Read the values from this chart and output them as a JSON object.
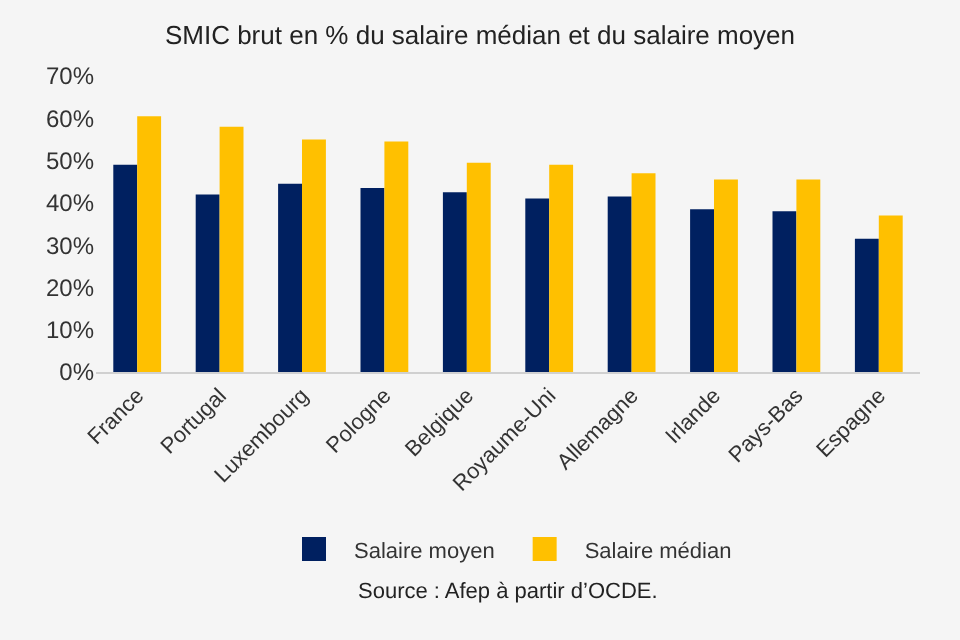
{
  "chart_data": {
    "type": "bar",
    "title": "SMIC brut en % du salaire médian et du salaire moyen",
    "categories": [
      "France",
      "Portugal",
      "Luxembourg",
      "Pologne",
      "Belgique",
      "Royaume-Uni",
      "Allemagne",
      "Irlande",
      "Pays-Bas",
      "Espagne"
    ],
    "series": [
      {
        "name": "Salaire moyen",
        "color": "#002060",
        "values": [
          49,
          42,
          44.5,
          43.5,
          42.5,
          41,
          41.5,
          38.5,
          38,
          31.5
        ]
      },
      {
        "name": "Salaire médian",
        "color": "#ffc000",
        "values": [
          60.5,
          58,
          55,
          54.5,
          49.5,
          49,
          47,
          45.5,
          45.5,
          37
        ]
      }
    ],
    "ylim": [
      0,
      70
    ],
    "yticks": [
      {
        "value": 0,
        "label": "0%"
      },
      {
        "value": 10,
        "label": "10%"
      },
      {
        "value": 20,
        "label": "20%"
      },
      {
        "value": 30,
        "label": "30%"
      },
      {
        "value": 40,
        "label": "40%"
      },
      {
        "value": 50,
        "label": "50%"
      },
      {
        "value": 60,
        "label": "60%"
      },
      {
        "value": 70,
        "label": "70%"
      }
    ],
    "grid": false,
    "legend": "bottom",
    "annotations": [
      "Source : Afep à partir d’OCDE."
    ]
  }
}
